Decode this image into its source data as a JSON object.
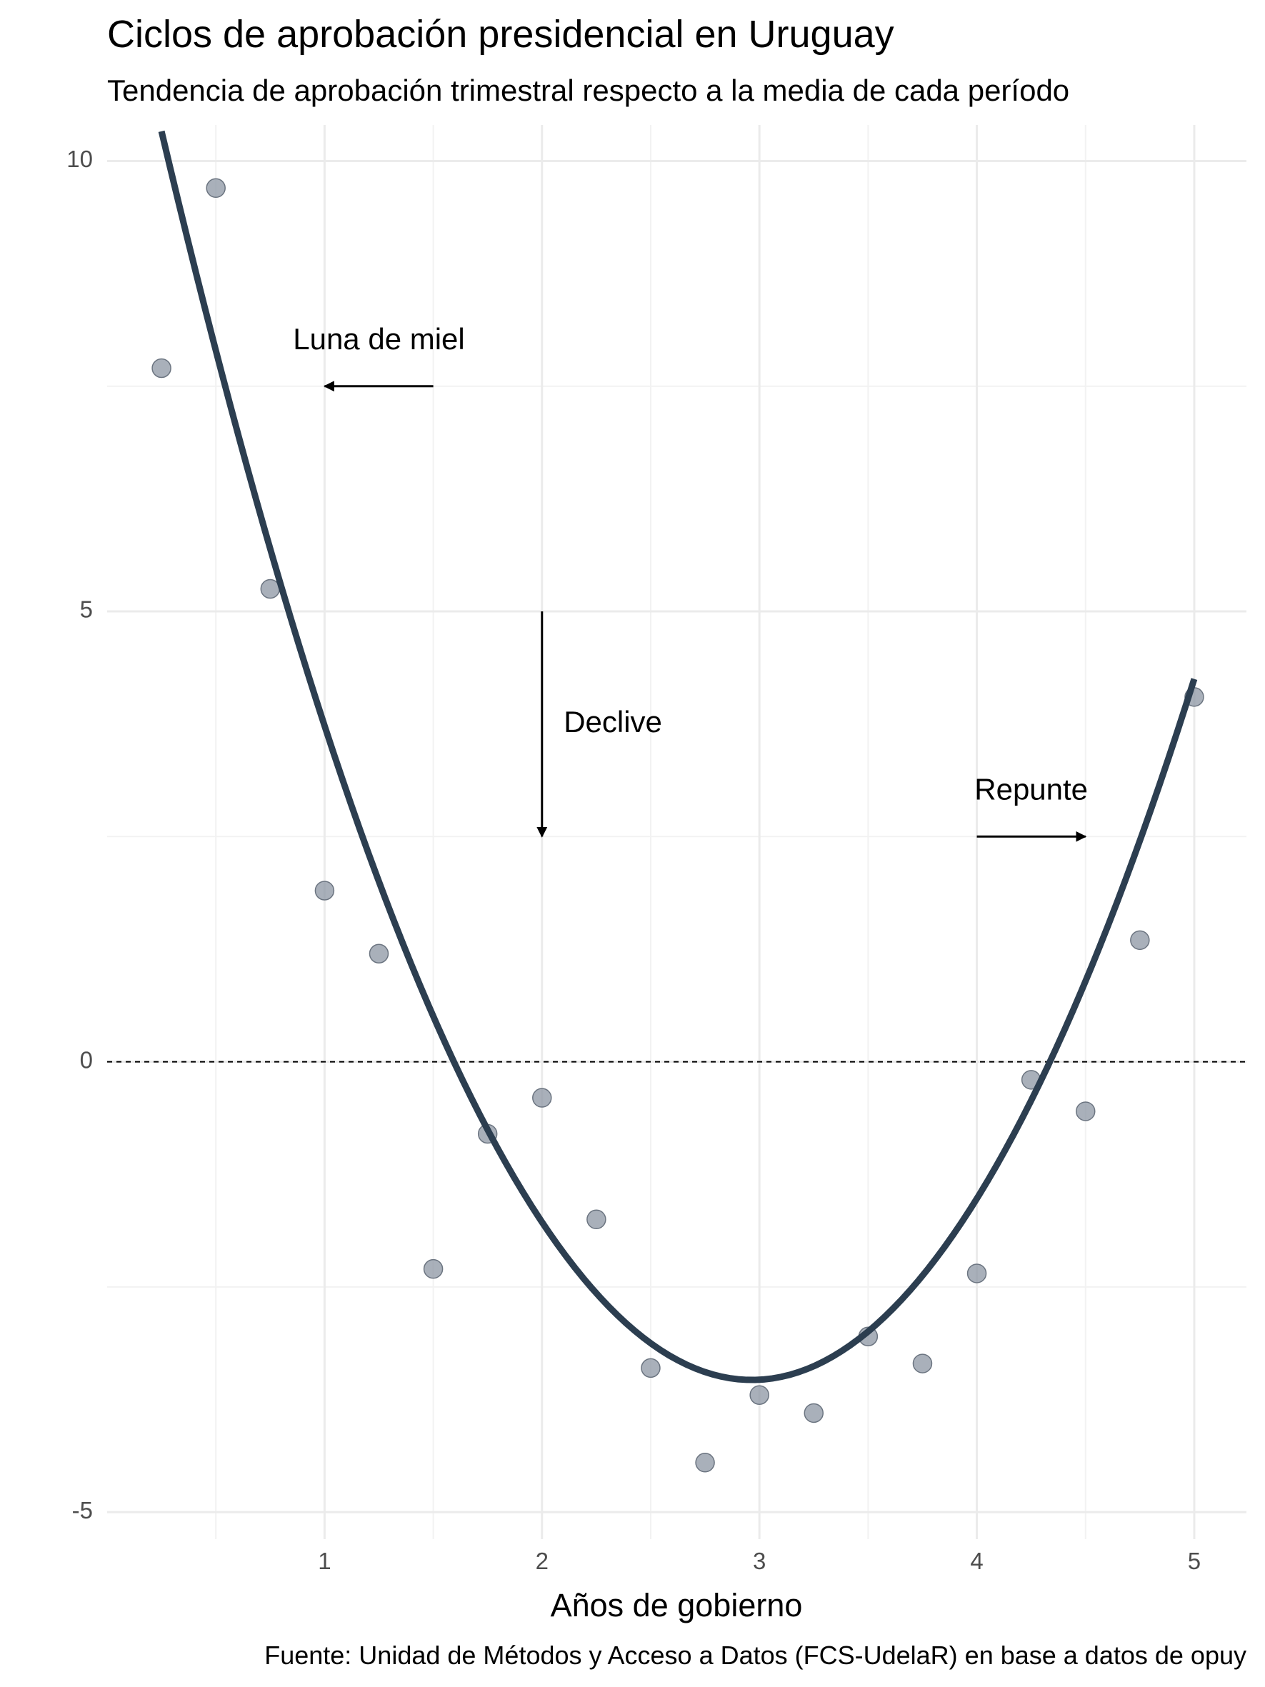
{
  "chart_data": {
    "type": "scatter",
    "title": "Ciclos de aprobación presidencial en Uruguay",
    "subtitle": "Tendencia de aprobación trimestral respecto a la media de cada período",
    "xlabel": "Años de gobierno",
    "ylabel": "",
    "caption": "Fuente: Unidad de Métodos y Acceso a Datos (FCS-UdelaR) en base a datos de opuy",
    "xlim": [
      0.0,
      5.24
    ],
    "ylim": [
      -5.3,
      10.4
    ],
    "x_ticks": [
      1,
      2,
      3,
      4,
      5
    ],
    "x_tick_labels": [
      "1",
      "2",
      "3",
      "4",
      "5"
    ],
    "y_ticks": [
      -5,
      0,
      5,
      10
    ],
    "y_tick_labels": [
      "-5",
      "0",
      "5",
      "10"
    ],
    "grid": true,
    "reference_line": {
      "y": 0,
      "style": "dashed"
    },
    "points": {
      "x": [
        0.25,
        0.5,
        0.75,
        1.0,
        1.25,
        1.5,
        1.75,
        2.0,
        2.25,
        2.5,
        2.75,
        3.0,
        3.25,
        3.5,
        3.75,
        4.0,
        4.25,
        4.5,
        4.75,
        5.0
      ],
      "y": [
        7.7,
        9.7,
        5.25,
        1.9,
        1.2,
        -2.3,
        -0.8,
        -0.4,
        -1.75,
        -3.4,
        -4.45,
        -3.7,
        -3.9,
        -3.05,
        -3.35,
        -2.35,
        -0.2,
        -0.55,
        1.35,
        4.05
      ],
      "color": "#8c95a3"
    },
    "trend": {
      "type": "quadratic fit",
      "x_start": 0.25,
      "x_end": 5.0,
      "coefficients": [
        13.0,
        -11.15,
        1.88
      ],
      "color": "#2c3e50"
    },
    "annotations": [
      {
        "text": "Luna de miel",
        "x": 1.25,
        "y": 8.0,
        "arrow_from": [
          1.5,
          7.5
        ],
        "arrow_to": [
          1.0,
          7.5
        ]
      },
      {
        "text": "Declive",
        "x": 2.1,
        "y": 3.75,
        "arrow_from": [
          2.0,
          5.0
        ],
        "arrow_to": [
          2.0,
          2.5
        ]
      },
      {
        "text": "Repunte",
        "x": 4.25,
        "y": 3.0,
        "arrow_from": [
          4.0,
          2.5
        ],
        "arrow_to": [
          4.5,
          2.5
        ]
      }
    ]
  }
}
